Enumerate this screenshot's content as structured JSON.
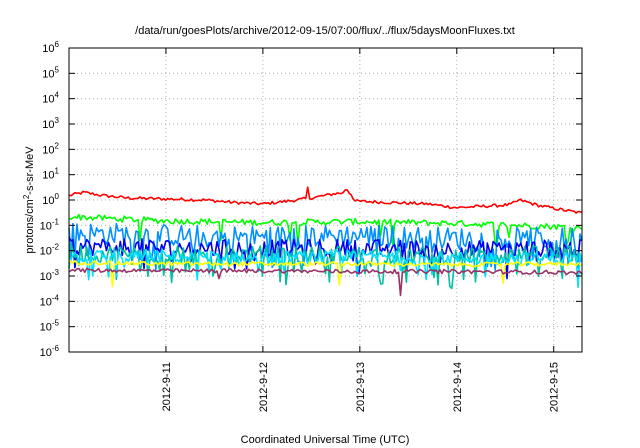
{
  "chart_data": {
    "type": "line",
    "title": "/data/run/goesPlots/archive/2012-09-15/07:00/flux/../flux/5daysMoonFluxes.txt",
    "xlabel": "Coordinated Universal Time (UTC)",
    "ylabel": {
      "main": "protons/cm",
      "sup": "2",
      "rest": "-s-sr-MeV"
    },
    "yscale": "log",
    "ylim": [
      -6,
      6
    ],
    "y_ticks": [
      {
        "exp": -6,
        "base": "10",
        "sup": "-6"
      },
      {
        "exp": -5,
        "base": "10",
        "sup": "-5"
      },
      {
        "exp": -4,
        "base": "10",
        "sup": "-4"
      },
      {
        "exp": -3,
        "base": "10",
        "sup": "-3"
      },
      {
        "exp": -2,
        "base": "10",
        "sup": "-2"
      },
      {
        "exp": -1,
        "base": "10",
        "sup": "-1"
      },
      {
        "exp": 0,
        "base": "10",
        "sup": "0"
      },
      {
        "exp": 1,
        "base": "10",
        "sup": "1"
      },
      {
        "exp": 2,
        "base": "10",
        "sup": "2"
      },
      {
        "exp": 3,
        "base": "10",
        "sup": "3"
      },
      {
        "exp": 4,
        "base": "10",
        "sup": "4"
      },
      {
        "exp": 5,
        "base": "10",
        "sup": "5"
      },
      {
        "exp": 6,
        "base": "10",
        "sup": "6"
      }
    ],
    "x_range": [
      "2012-09-10 02:00",
      "2012-09-15 07:00"
    ],
    "x_ticks": [
      {
        "label": "2012-9-11",
        "day_offset": 1
      },
      {
        "label": "2012-9-12",
        "day_offset": 2
      },
      {
        "label": "2012-9-13",
        "day_offset": 3
      },
      {
        "label": "2012-9-14",
        "day_offset": 4
      },
      {
        "label": "2012-9-15",
        "day_offset": 5
      }
    ],
    "grid": true,
    "series": [
      {
        "color": "#ff0000",
        "noise": 0.06,
        "spikes": 0,
        "anchors": [
          [
            0.0,
            1.5
          ],
          [
            0.15,
            2.0
          ],
          [
            0.35,
            1.5
          ],
          [
            0.6,
            1.2
          ],
          [
            1.0,
            1.1
          ],
          [
            1.4,
            1.0
          ],
          [
            1.7,
            0.8
          ],
          [
            2.0,
            0.7
          ],
          [
            2.35,
            1.0
          ],
          [
            2.55,
            1.3
          ],
          [
            2.75,
            1.8
          ],
          [
            2.9,
            2.0
          ],
          [
            2.95,
            0.9
          ],
          [
            3.3,
            0.8
          ],
          [
            3.7,
            0.7
          ],
          [
            4.0,
            0.5
          ],
          [
            4.4,
            0.6
          ],
          [
            4.55,
            0.65
          ],
          [
            4.65,
            1.0
          ],
          [
            4.85,
            0.6
          ],
          [
            5.1,
            0.4
          ],
          [
            5.3,
            0.3
          ]
        ],
        "extra": [
          [
            2.47,
            3.2
          ],
          [
            2.86,
            2.5
          ]
        ]
      },
      {
        "color": "#00ff00",
        "noise": 0.12,
        "spikes": 0.04,
        "anchors": [
          [
            0,
            0.22
          ],
          [
            1,
            0.15
          ],
          [
            2,
            0.13
          ],
          [
            3,
            0.14
          ],
          [
            4,
            0.12
          ],
          [
            5,
            0.09
          ],
          [
            5.3,
            0.08
          ]
        ]
      },
      {
        "color": "#0090ff",
        "noise": 0.45,
        "spikes": 0.15,
        "anchors": [
          [
            0,
            0.05
          ],
          [
            1,
            0.04
          ],
          [
            2,
            0.035
          ],
          [
            3,
            0.04
          ],
          [
            4,
            0.03
          ],
          [
            5,
            0.03
          ],
          [
            5.3,
            0.03
          ]
        ]
      },
      {
        "color": "#0000ee",
        "noise": 0.35,
        "spikes": 0.12,
        "anchors": [
          [
            0,
            0.015
          ],
          [
            1,
            0.013
          ],
          [
            2,
            0.012
          ],
          [
            3,
            0.013
          ],
          [
            4,
            0.011
          ],
          [
            5,
            0.012
          ],
          [
            5.3,
            0.012
          ]
        ]
      },
      {
        "color": "#00c0a0",
        "noise": 0.35,
        "spikes": 0.18,
        "anchors": [
          [
            0,
            0.008
          ],
          [
            1,
            0.007
          ],
          [
            2,
            0.007
          ],
          [
            3,
            0.007
          ],
          [
            4,
            0.006
          ],
          [
            5,
            0.007
          ],
          [
            5.3,
            0.007
          ]
        ]
      },
      {
        "color": "#00e0ff",
        "noise": 0.25,
        "spikes": 0.1,
        "anchors": [
          [
            0,
            0.006
          ],
          [
            1,
            0.006
          ],
          [
            2,
            0.005
          ],
          [
            3,
            0.006
          ],
          [
            4,
            0.005
          ],
          [
            5,
            0.005
          ],
          [
            5.3,
            0.005
          ]
        ]
      },
      {
        "color": "#ffff00",
        "noise": 0.08,
        "spikes": 0.02,
        "anchors": [
          [
            0,
            0.0035
          ],
          [
            1,
            0.003
          ],
          [
            2,
            0.003
          ],
          [
            3,
            0.003
          ],
          [
            4,
            0.0028
          ],
          [
            5,
            0.003
          ],
          [
            5.3,
            0.003
          ]
        ]
      },
      {
        "color": "#993366",
        "noise": 0.08,
        "spikes": 0.01,
        "anchors": [
          [
            0,
            0.0017
          ],
          [
            1,
            0.0016
          ],
          [
            2,
            0.0016
          ],
          [
            3,
            0.0015
          ],
          [
            4,
            0.0015
          ],
          [
            5,
            0.0014
          ],
          [
            5.3,
            0.0013
          ]
        ],
        "extra": [
          [
            1.55,
            0.0008
          ]
        ]
      }
    ]
  }
}
